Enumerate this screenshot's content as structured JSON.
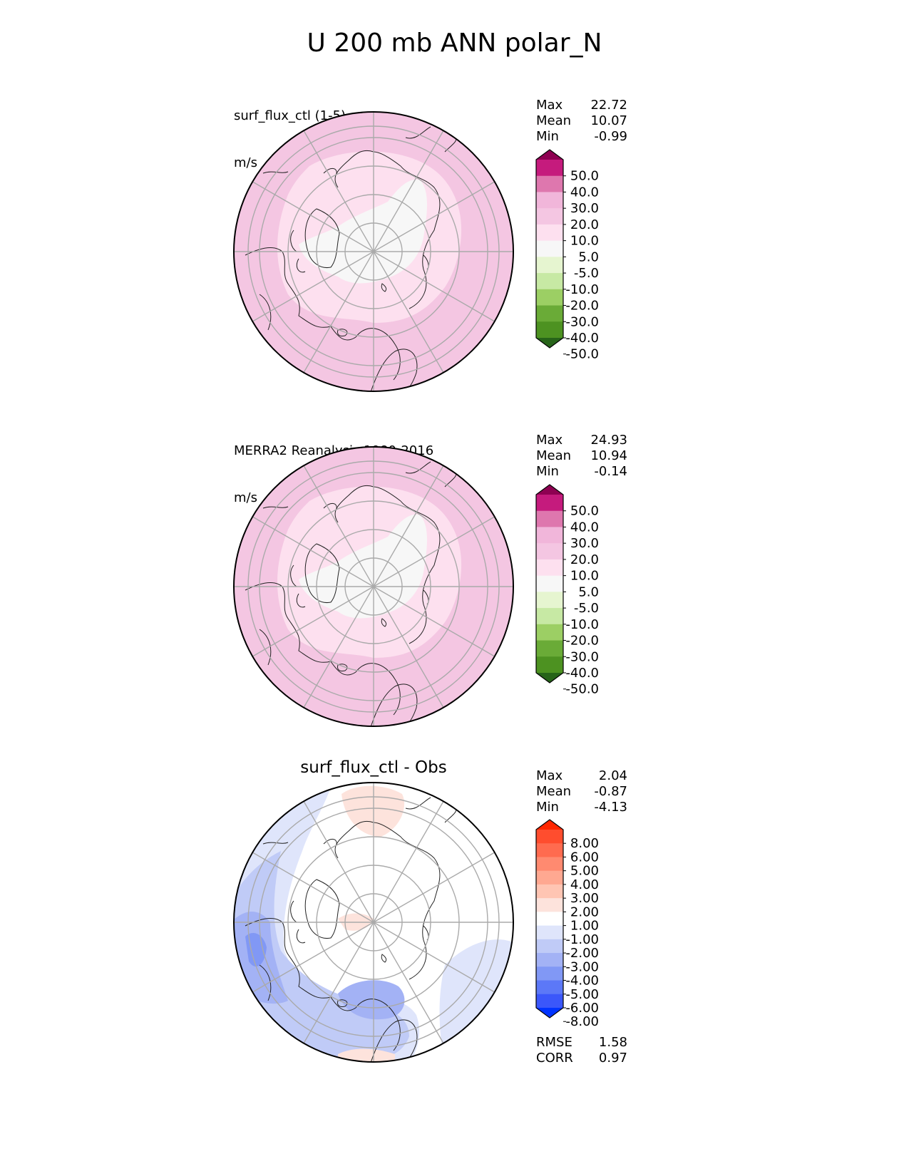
{
  "figure": {
    "title": "U 200 mb ANN polar_N"
  },
  "chart_data": [
    {
      "type": "heatmap",
      "projection": "north-polar-stereographic",
      "label_line1": "surf_flux_ctl (1-5)",
      "label_line2": "m/s",
      "stats": {
        "Max": "22.72",
        "Mean": "10.07",
        "Min": "-0.99"
      },
      "colorbar": {
        "ticks": [
          "50.0",
          "40.0",
          "30.0",
          "20.0",
          "10.0",
          "5.0",
          "-5.0",
          "-10.0",
          "-20.0",
          "-30.0",
          "-40.0",
          "-50.0"
        ],
        "colors": [
          "#8e0152",
          "#c51b7d",
          "#de77ae",
          "#f1b6da",
          "#f4c6e2",
          "#fde0ef",
          "#f7f7f7",
          "#e6f5d0",
          "#c7e9a4",
          "#9ccf64",
          "#6aab37",
          "#4d9221",
          "#276419"
        ],
        "extend": "both"
      },
      "fields": {
        "base_color": "#f4c6e2",
        "inner_color": "#fde0ef",
        "core_color": "#f7f7f7",
        "edge_color": "#e9a0cc"
      }
    },
    {
      "type": "heatmap",
      "projection": "north-polar-stereographic",
      "label_line1": "MERRA2 Reanalysis 1980-2016",
      "label_line2": "m/s",
      "stats": {
        "Max": "24.93",
        "Mean": "10.94",
        "Min": "-0.14"
      },
      "colorbar": {
        "ticks": [
          "50.0",
          "40.0",
          "30.0",
          "20.0",
          "10.0",
          "5.0",
          "-5.0",
          "-10.0",
          "-20.0",
          "-30.0",
          "-40.0",
          "-50.0"
        ],
        "colors": [
          "#8e0152",
          "#c51b7d",
          "#de77ae",
          "#f1b6da",
          "#f4c6e2",
          "#fde0ef",
          "#f7f7f7",
          "#e6f5d0",
          "#c7e9a4",
          "#9ccf64",
          "#6aab37",
          "#4d9221",
          "#276419"
        ],
        "extend": "both"
      },
      "fields": {
        "base_color": "#f4c6e2",
        "inner_color": "#fde0ef",
        "core_color": "#f7f7f7",
        "edge_color": "#e9a0cc"
      }
    },
    {
      "type": "heatmap",
      "projection": "north-polar-stereographic",
      "title": "surf_flux_ctl - Obs",
      "stats": {
        "Max": "2.04",
        "Mean": "-0.87",
        "Min": "-4.13"
      },
      "colorbar": {
        "ticks": [
          "8.00",
          "6.00",
          "5.00",
          "4.00",
          "3.00",
          "2.00",
          "1.00",
          "-1.00",
          "-2.00",
          "-3.00",
          "-4.00",
          "-5.00",
          "-6.00",
          "-8.00"
        ],
        "colors": [
          "#ff2600",
          "#ff4d2e",
          "#ff6b4f",
          "#ff8a70",
          "#ffa891",
          "#ffc5b3",
          "#fde3dc",
          "#ffffff",
          "#dfe5fb",
          "#c0cbf7",
          "#a3b2f5",
          "#8198f5",
          "#5c78f7",
          "#3b57fa",
          "#0033ff"
        ],
        "extend": "both"
      },
      "metrics": {
        "RMSE": "1.58",
        "CORR": "0.97"
      },
      "fields": {
        "base_color": "#ffffff",
        "neg1": "#dfe5fb",
        "neg2": "#c0cbf7",
        "neg3": "#a3b2f5",
        "neg4": "#8198f5",
        "pos1": "#fde3dc"
      }
    }
  ]
}
